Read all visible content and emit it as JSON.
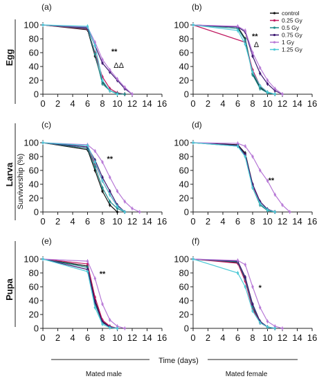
{
  "colors": {
    "control": "#111111",
    "0.25 Gy": "#c0175f",
    "0.5 Gy": "#1e8a8a",
    "0.75 Gy": "#3b1670",
    "1 Gy": "#b778d6",
    "1.25 Gy": "#4cc9d6"
  },
  "row_labels": [
    "Egg",
    "Larva",
    "Pupa"
  ],
  "y_axis_title": "Survivorship (%)",
  "x_axis_title": "Time (days)",
  "bottom_labels": {
    "left": "Mated male",
    "right": "Mated female"
  },
  "legend": [
    "control",
    "0.25  Gy",
    "0.5  Gy",
    "0.75 Gy",
    "1 Gy",
    "1.25 Gy"
  ],
  "chart_data": [
    {
      "panel": "(a)",
      "type": "line",
      "xlim": [
        0,
        16
      ],
      "ylim": [
        0,
        100
      ],
      "x_ticks": [
        0,
        2,
        4,
        6,
        8,
        10,
        12,
        14,
        16
      ],
      "y_ticks": [
        0,
        20,
        40,
        60,
        80,
        100
      ],
      "annotations": [
        {
          "text": "**",
          "x": 9.6,
          "y": 58
        },
        {
          "text": "ΔΔ",
          "x": 10.2,
          "y": 38
        }
      ],
      "series": [
        {
          "name": "control",
          "x": [
            0,
            6,
            7,
            8,
            9,
            10,
            11
          ],
          "y": [
            100,
            93,
            55,
            18,
            5,
            1,
            0
          ]
        },
        {
          "name": "0.25 Gy",
          "x": [
            0,
            6,
            7,
            8,
            9,
            10,
            11
          ],
          "y": [
            100,
            94,
            60,
            25,
            8,
            2,
            0
          ]
        },
        {
          "name": "0.5 Gy",
          "x": [
            0,
            6,
            7,
            8,
            9,
            10,
            11
          ],
          "y": [
            100,
            95,
            58,
            15,
            5,
            1,
            0
          ]
        },
        {
          "name": "0.75 Gy",
          "x": [
            0,
            6,
            7,
            8,
            9,
            10,
            11,
            12
          ],
          "y": [
            100,
            96,
            70,
            45,
            32,
            20,
            8,
            0
          ]
        },
        {
          "name": "1 Gy",
          "x": [
            0,
            6,
            7,
            8,
            9,
            10,
            11,
            12
          ],
          "y": [
            100,
            97,
            75,
            50,
            35,
            22,
            10,
            0
          ]
        },
        {
          "name": "1.25 Gy",
          "x": [
            0,
            6,
            7,
            8,
            9,
            10
          ],
          "y": [
            100,
            98,
            70,
            20,
            5,
            0
          ]
        }
      ]
    },
    {
      "panel": "(b)",
      "type": "line",
      "xlim": [
        0,
        16
      ],
      "ylim": [
        0,
        100
      ],
      "x_ticks": [
        0,
        2,
        4,
        6,
        8,
        10,
        12,
        14,
        16
      ],
      "y_ticks": [
        0,
        20,
        40,
        60,
        80,
        100
      ],
      "annotations": [
        {
          "text": "**",
          "x": 8.3,
          "y": 80
        },
        {
          "text": "Δ",
          "x": 8.5,
          "y": 68
        }
      ],
      "series": [
        {
          "name": "control",
          "x": [
            0,
            6,
            7,
            8,
            9,
            10,
            11
          ],
          "y": [
            100,
            97,
            80,
            30,
            10,
            2,
            0
          ]
        },
        {
          "name": "0.25 Gy",
          "x": [
            0,
            7,
            8,
            9,
            10,
            11
          ],
          "y": [
            100,
            75,
            35,
            12,
            3,
            0
          ]
        },
        {
          "name": "0.5 Gy",
          "x": [
            0,
            6,
            7,
            8,
            9,
            10,
            11
          ],
          "y": [
            100,
            95,
            78,
            28,
            8,
            2,
            0
          ]
        },
        {
          "name": "0.75 Gy",
          "x": [
            0,
            6,
            7,
            8,
            9,
            10,
            11,
            12
          ],
          "y": [
            100,
            97,
            90,
            55,
            30,
            15,
            5,
            0
          ]
        },
        {
          "name": "1 Gy",
          "x": [
            0,
            6,
            7,
            8,
            9,
            10,
            11,
            12
          ],
          "y": [
            100,
            98,
            92,
            60,
            38,
            20,
            8,
            0
          ]
        },
        {
          "name": "1.25 Gy",
          "x": [
            0,
            6,
            7,
            8,
            9,
            10,
            11
          ],
          "y": [
            100,
            92,
            72,
            32,
            12,
            3,
            0
          ]
        }
      ]
    },
    {
      "panel": "(c)",
      "type": "line",
      "xlim": [
        0,
        16
      ],
      "ylim": [
        0,
        100
      ],
      "x_ticks": [
        0,
        2,
        4,
        6,
        8,
        10,
        12,
        14,
        16
      ],
      "y_ticks": [
        0,
        20,
        40,
        60,
        80,
        100
      ],
      "annotations": [
        {
          "text": "**",
          "x": 9.0,
          "y": 73
        }
      ],
      "series": [
        {
          "name": "control",
          "x": [
            0,
            6,
            7,
            8,
            9,
            10
          ],
          "y": [
            100,
            90,
            60,
            30,
            10,
            0
          ]
        },
        {
          "name": "0.25 Gy",
          "x": [
            0,
            6,
            7,
            8,
            9,
            10,
            11
          ],
          "y": [
            100,
            92,
            70,
            45,
            25,
            8,
            0
          ]
        },
        {
          "name": "0.5 Gy",
          "x": [
            0,
            6,
            7,
            8,
            9,
            10,
            11
          ],
          "y": [
            100,
            92,
            65,
            35,
            15,
            5,
            0
          ]
        },
        {
          "name": "0.75 Gy",
          "x": [
            0,
            6,
            7,
            8,
            9,
            10,
            11
          ],
          "y": [
            100,
            94,
            75,
            50,
            30,
            10,
            0
          ]
        },
        {
          "name": "1 Gy",
          "x": [
            0,
            6,
            7,
            8,
            9,
            10,
            11,
            12,
            13
          ],
          "y": [
            100,
            97,
            88,
            72,
            50,
            30,
            15,
            5,
            0
          ]
        },
        {
          "name": "1.25 Gy",
          "x": [
            0,
            6,
            7,
            8,
            9,
            10,
            11
          ],
          "y": [
            100,
            96,
            72,
            45,
            25,
            8,
            0
          ]
        }
      ]
    },
    {
      "panel": "(d)",
      "type": "line",
      "xlim": [
        0,
        16
      ],
      "ylim": [
        0,
        100
      ],
      "x_ticks": [
        0,
        2,
        4,
        6,
        8,
        10,
        12,
        14,
        16
      ],
      "y_ticks": [
        0,
        20,
        40,
        60,
        80,
        100
      ],
      "annotations": [
        {
          "text": "**",
          "x": 10.5,
          "y": 42
        }
      ],
      "series": [
        {
          "name": "control",
          "x": [
            0,
            6,
            7,
            8,
            9,
            10,
            11
          ],
          "y": [
            100,
            97,
            85,
            40,
            12,
            3,
            0
          ]
        },
        {
          "name": "0.25 Gy",
          "x": [
            0,
            6,
            7,
            8,
            9,
            10,
            11
          ],
          "y": [
            100,
            96,
            82,
            38,
            12,
            3,
            0
          ]
        },
        {
          "name": "0.5 Gy",
          "x": [
            0,
            6,
            7,
            8,
            9,
            10,
            11
          ],
          "y": [
            100,
            95,
            80,
            35,
            10,
            2,
            0
          ]
        },
        {
          "name": "0.75 Gy",
          "x": [
            0,
            6,
            7,
            8,
            9,
            10,
            11
          ],
          "y": [
            100,
            96,
            83,
            40,
            15,
            4,
            0
          ]
        },
        {
          "name": "1 Gy",
          "x": [
            0,
            6,
            7,
            8,
            9,
            10,
            11,
            12,
            13
          ],
          "y": [
            100,
            99,
            95,
            80,
            60,
            45,
            25,
            10,
            0
          ]
        },
        {
          "name": "1.25 Gy",
          "x": [
            0,
            6,
            7,
            8,
            9,
            10,
            11
          ],
          "y": [
            100,
            95,
            80,
            35,
            12,
            3,
            0
          ]
        }
      ]
    },
    {
      "panel": "(e)",
      "type": "line",
      "xlim": [
        0,
        16
      ],
      "ylim": [
        0,
        100
      ],
      "x_ticks": [
        0,
        2,
        4,
        6,
        8,
        10,
        12,
        14,
        16
      ],
      "y_ticks": [
        0,
        20,
        40,
        60,
        80,
        100
      ],
      "annotations": [
        {
          "text": "**",
          "x": 8.0,
          "y": 75
        }
      ],
      "series": [
        {
          "name": "control",
          "x": [
            0,
            6,
            7,
            8,
            9,
            10
          ],
          "y": [
            100,
            90,
            40,
            10,
            2,
            0
          ]
        },
        {
          "name": "0.25 Gy",
          "x": [
            0,
            6,
            7,
            8,
            9,
            10
          ],
          "y": [
            100,
            93,
            45,
            12,
            3,
            0
          ]
        },
        {
          "name": "0.5 Gy",
          "x": [
            0,
            6,
            7,
            8,
            9,
            10
          ],
          "y": [
            100,
            88,
            35,
            8,
            2,
            0
          ]
        },
        {
          "name": "0.75 Gy",
          "x": [
            0,
            6,
            7,
            8,
            9,
            10
          ],
          "y": [
            100,
            85,
            38,
            9,
            2,
            0
          ]
        },
        {
          "name": "1 Gy",
          "x": [
            0,
            6,
            7,
            8,
            9,
            10,
            11
          ],
          "y": [
            100,
            97,
            72,
            35,
            12,
            3,
            0
          ]
        },
        {
          "name": "1.25 Gy",
          "x": [
            0,
            6,
            7,
            8,
            9,
            10
          ],
          "y": [
            100,
            82,
            30,
            6,
            1,
            0
          ]
        }
      ]
    },
    {
      "panel": "(f)",
      "type": "line",
      "xlim": [
        0,
        16
      ],
      "ylim": [
        0,
        100
      ],
      "x_ticks": [
        0,
        2,
        4,
        6,
        8,
        10,
        12,
        14,
        16
      ],
      "y_ticks": [
        0,
        20,
        40,
        60,
        80,
        100
      ],
      "annotations": [
        {
          "text": "*",
          "x": 9.0,
          "y": 55
        }
      ],
      "series": [
        {
          "name": "control",
          "x": [
            0,
            6,
            7,
            8,
            9,
            10,
            11
          ],
          "y": [
            100,
            95,
            70,
            30,
            8,
            2,
            0
          ]
        },
        {
          "name": "0.25 Gy",
          "x": [
            0,
            6,
            7,
            8,
            9,
            10,
            11
          ],
          "y": [
            100,
            94,
            68,
            28,
            8,
            2,
            0
          ]
        },
        {
          "name": "0.5 Gy",
          "x": [
            0,
            6,
            7,
            8,
            9,
            10,
            11
          ],
          "y": [
            100,
            96,
            72,
            32,
            10,
            2,
            0
          ]
        },
        {
          "name": "0.75 Gy",
          "x": [
            0,
            6,
            7,
            8,
            9,
            10,
            11
          ],
          "y": [
            100,
            97,
            74,
            35,
            10,
            2,
            0
          ]
        },
        {
          "name": "1 Gy",
          "x": [
            0,
            6,
            7,
            8,
            9,
            10,
            11,
            12
          ],
          "y": [
            100,
            98,
            92,
            60,
            30,
            10,
            3,
            0
          ]
        },
        {
          "name": "1.25 Gy",
          "x": [
            0,
            6,
            7,
            8,
            9,
            10,
            11
          ],
          "y": [
            100,
            80,
            60,
            25,
            8,
            2,
            0
          ]
        }
      ]
    }
  ]
}
